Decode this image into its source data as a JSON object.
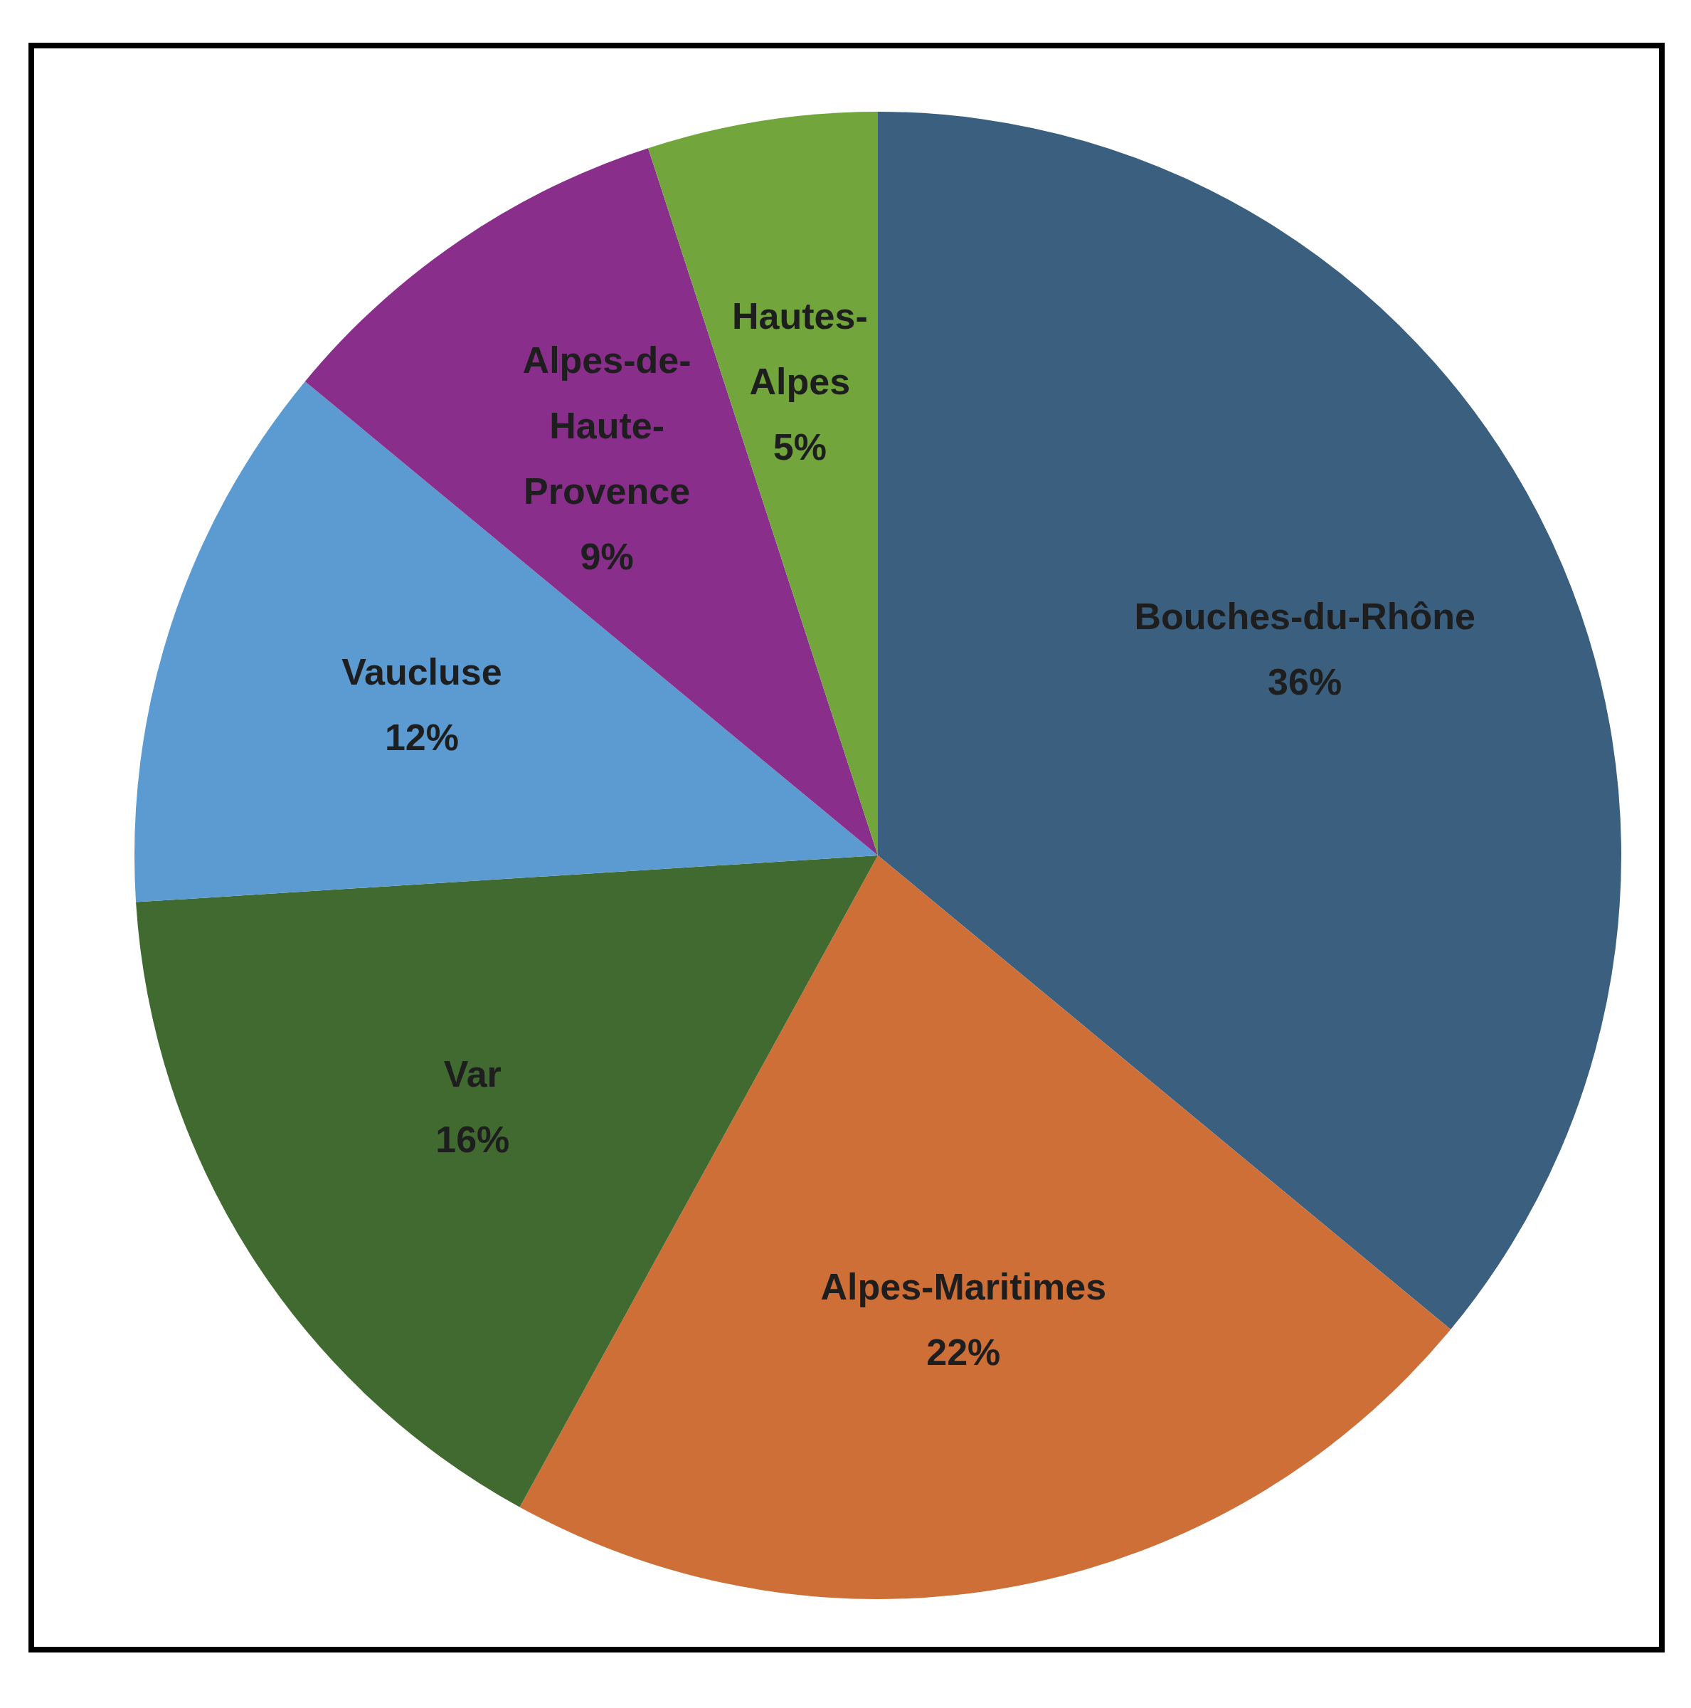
{
  "chart_data": {
    "type": "pie",
    "categories": [
      "Bouches-du-Rhône",
      "Alpes-Maritimes",
      "Var",
      "Vaucluse",
      "Alpes-de-Haute-Provence",
      "Hautes-Alpes"
    ],
    "values": [
      36,
      22,
      16,
      12,
      9,
      5
    ],
    "colors": [
      "#3a5f7f",
      "#cf6f38",
      "#416a30",
      "#5b9bd1",
      "#892e8b",
      "#72a63c"
    ],
    "data_labels": true,
    "value_labels": [
      "36%",
      "22%",
      "16%",
      "12%",
      "9%",
      "5%"
    ],
    "legend": false
  }
}
